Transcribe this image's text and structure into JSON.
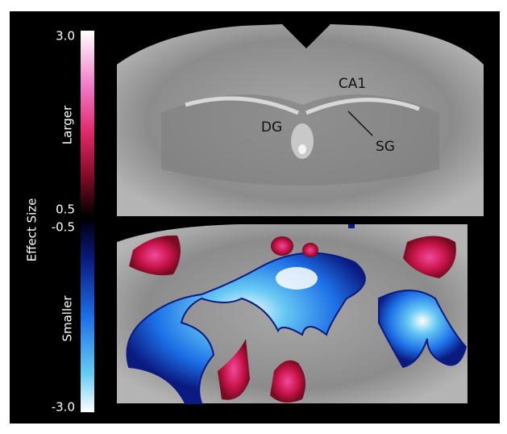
{
  "colorbar": {
    "title": "Effect Size",
    "positive": {
      "label": "Larger",
      "max": "3.0",
      "min": "0.5"
    },
    "negative": {
      "label": "Smaller",
      "max": "-0.5",
      "min": "-3.0"
    }
  },
  "annotations": {
    "ca1": "CA1",
    "dg": "DG",
    "sg": "SG"
  }
}
